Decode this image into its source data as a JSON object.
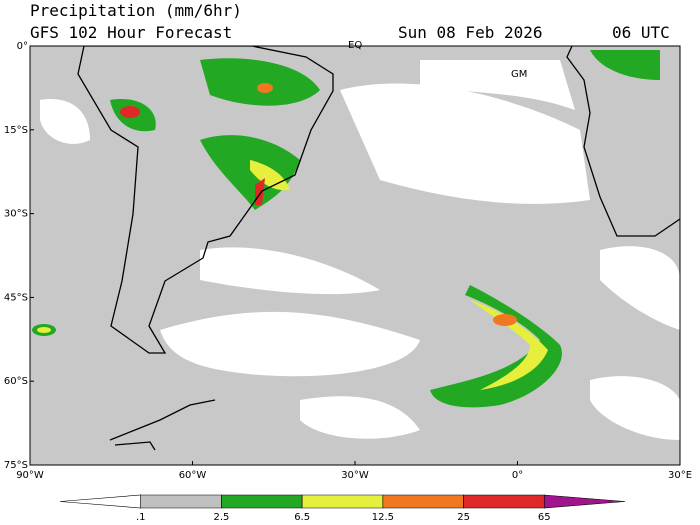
{
  "header": {
    "title": "Precipitation (mm/6hr)",
    "subtitle": "GFS 102 Hour Forecast",
    "date": "Sun 08 Feb 2026",
    "time": "06 UTC"
  },
  "map": {
    "lat_labels": [
      "0°",
      "15°S",
      "30°S",
      "45°S",
      "60°S",
      "75°S"
    ],
    "lon_labels": [
      "90°W",
      "60°W",
      "30°W",
      "0°",
      "30°E"
    ],
    "equator_label": "EQ",
    "meridian_label": "GM"
  },
  "colorbar": {
    "labels": [
      ".1",
      "2.5",
      "6.5",
      "12.5",
      "25",
      "65"
    ],
    "colors": [
      "#ffffff",
      "#c0c0c0",
      "#22a822",
      "#e6f03c",
      "#f07820",
      "#e02828",
      "#a0148c"
    ]
  }
}
